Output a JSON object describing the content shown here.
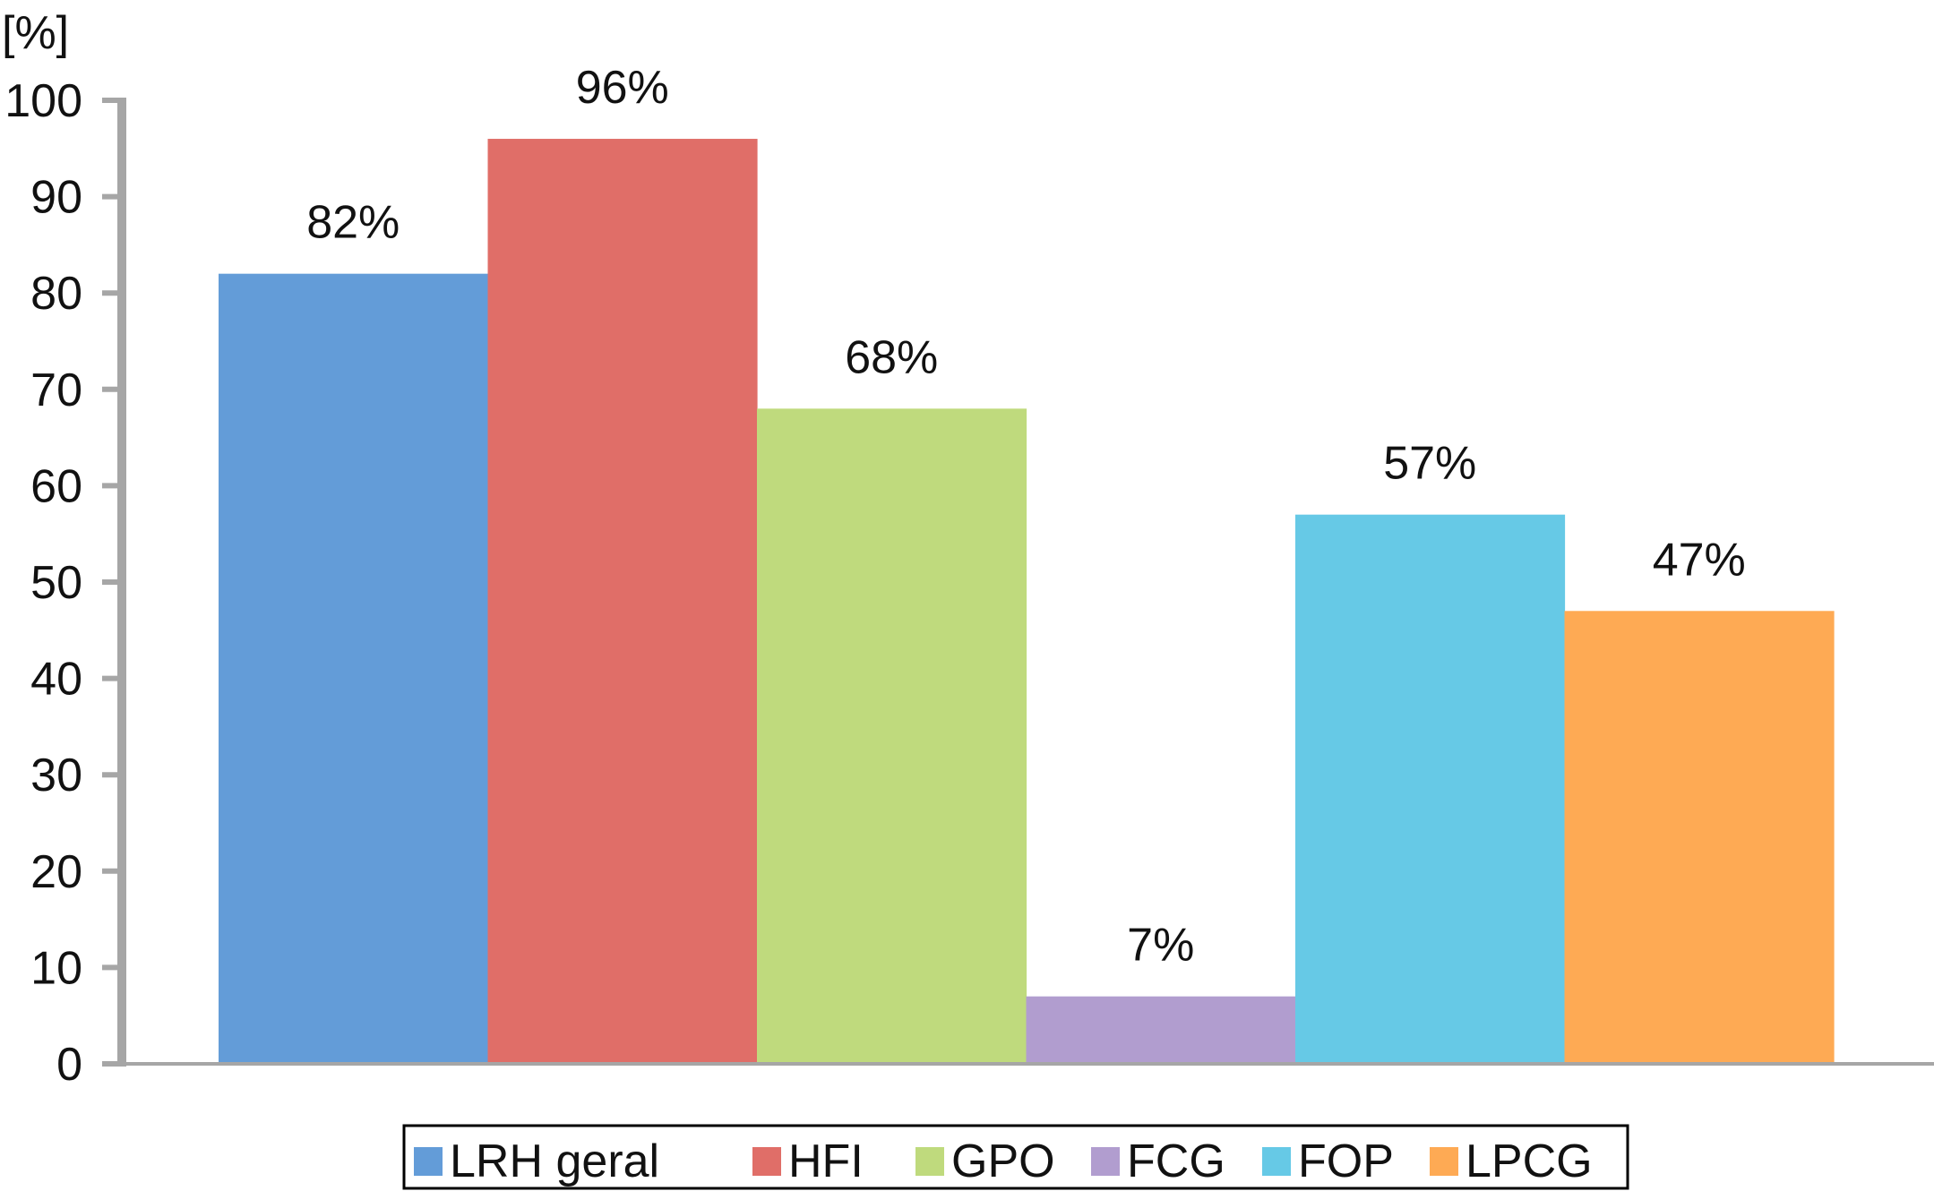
{
  "chart_data": {
    "type": "bar",
    "title": "",
    "xlabel": "",
    "ylabel": "[%]",
    "ylim": [
      0,
      100
    ],
    "yticks": [
      0,
      10,
      20,
      30,
      40,
      50,
      60,
      70,
      80,
      90,
      100
    ],
    "grid": false,
    "legend_position": "bottom",
    "series": [
      {
        "name": "LRH geral",
        "value": 82,
        "label": "82%",
        "color": "#639CD8"
      },
      {
        "name": "HFI",
        "value": 96,
        "label": "96%",
        "color": "#E06E68"
      },
      {
        "name": "GPO",
        "value": 68,
        "label": "68%",
        "color": "#BFDA7D"
      },
      {
        "name": "FCG",
        "value": 7,
        "label": "7%",
        "color": "#B19DCF"
      },
      {
        "name": "FOP",
        "value": 57,
        "label": "57%",
        "color": "#66C9E6"
      },
      {
        "name": "LPCG",
        "value": 47,
        "label": "47%",
        "color": "#FEAA54"
      }
    ],
    "axis_color": "#A6A6A6"
  }
}
